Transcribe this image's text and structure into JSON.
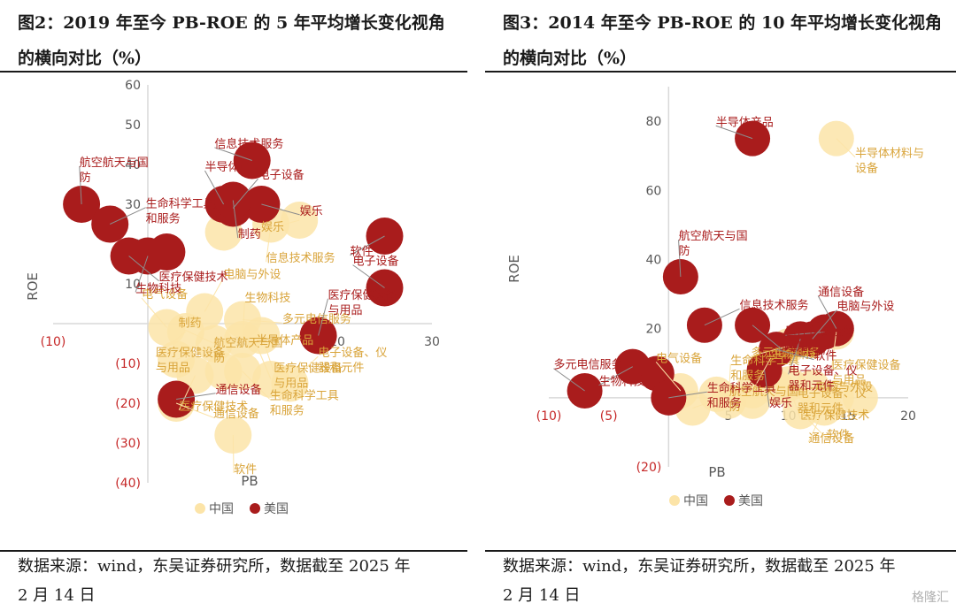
{
  "watermark": "格隆汇",
  "chart_data": [
    {
      "type": "scatter",
      "title": "图2：2019 年至今 PB-ROE 的 5 年平均增长变化视角的横向对比（%）",
      "title_lines": [
        "图2：2019 年至今 PB-ROE 的 5 年平均增长变化视角",
        "的横向对比（%）"
      ],
      "source_lines": [
        "数据来源：wind，东吴证券研究所，数据截至 2025 年",
        "2 月 14 日"
      ],
      "xlabel": "PB",
      "ylabel": "ROE",
      "xlim": [
        -10,
        30
      ],
      "ylim": [
        -40,
        60
      ],
      "x_ticks": [
        "(10)",
        "10",
        "20",
        "30"
      ],
      "x_tick_values": [
        -10,
        10,
        20,
        30
      ],
      "y_ticks": [
        "60",
        "50",
        "40",
        "30",
        "20",
        "10",
        "(10)",
        "(20)",
        "(30)",
        "(40)"
      ],
      "y_tick_values": [
        60,
        50,
        40,
        30,
        20,
        10,
        -10,
        -20,
        -30,
        -40
      ],
      "legend": [
        "中国",
        "美国"
      ],
      "legend_position": "bottom",
      "series": [
        {
          "name": "中国",
          "color": "#FCE4A8",
          "label_color": "#D9A43A",
          "points": [
            {
              "label": "",
              "x": 8,
              "y": 23
            },
            {
              "label": "信息技术服务",
              "x": 13,
              "y": 25
            },
            {
              "label": "娱乐",
              "x": 16,
              "y": 26
            },
            {
              "label": "电气设备",
              "x": 2,
              "y": -1
            },
            {
              "label": "电脑与外设",
              "x": 6,
              "y": 3
            },
            {
              "label": "多元电信服务",
              "x": 10,
              "y": 1
            },
            {
              "label": "医疗保健设备与用品",
              "x": 12,
              "y": -3
            },
            {
              "label": "医疗保健设备与用品",
              "x": 4,
              "y": -2
            },
            {
              "label": "制药",
              "x": 7,
              "y": -5
            },
            {
              "label": "生物科技",
              "x": 10,
              "y": -4
            },
            {
              "label": "航空航天与国防",
              "x": 3,
              "y": -9
            },
            {
              "label": "生命科学工具和服务",
              "x": 10,
              "y": -12
            },
            {
              "label": "医疗保健技术",
              "x": 5,
              "y": -13
            },
            {
              "label": "",
              "x": 8,
              "y": -12
            },
            {
              "label": "半导体产品",
              "x": 13,
              "y": -14
            },
            {
              "label": "电子设备、仪器和元件",
              "x": 15,
              "y": -15
            },
            {
              "label": "通信设备",
              "x": 3,
              "y": -20
            },
            {
              "label": "软件",
              "x": 9,
              "y": -28
            }
          ]
        },
        {
          "name": "美国",
          "color": "#A91C1C",
          "label_color": "#A91C1C",
          "points": [
            {
              "label": "信息技术服务",
              "x": 11,
              "y": 41
            },
            {
              "label": "航空航天与国防",
              "x": -7,
              "y": 30
            },
            {
              "label": "生命科学工具和服务",
              "x": -4,
              "y": 25
            },
            {
              "label": "医疗保健技术",
              "x": -2,
              "y": 17
            },
            {
              "label": "生物科技",
              "x": 0,
              "y": 17
            },
            {
              "label": "",
              "x": 2,
              "y": 18
            },
            {
              "label": "半导体产品",
              "x": 8,
              "y": 30
            },
            {
              "label": "电子设备",
              "x": 9,
              "y": 29
            },
            {
              "label": "娱乐",
              "x": 12,
              "y": 30
            },
            {
              "label": "制药",
              "x": 9,
              "y": 31
            },
            {
              "label": "软件",
              "x": 25,
              "y": 22
            },
            {
              "label": "电子设备",
              "x": 25,
              "y": 9
            },
            {
              "label": "医疗保健设备与用品",
              "x": 18,
              "y": -3
            },
            {
              "label": "通信设备",
              "x": 3,
              "y": -19
            }
          ]
        }
      ]
    },
    {
      "type": "scatter",
      "title": "图3：2014 年至今 PB-ROE 的 10 年平均增长变化视角的横向对比（%）",
      "title_lines": [
        "图3：2014 年至今 PB-ROE 的 10 年平均增长变化视角",
        "的横向对比（%）"
      ],
      "source_lines": [
        "数据来源：wind，东吴证券研究所，数据截至 2025 年",
        "2 月 14 日"
      ],
      "xlabel": "PB",
      "ylabel": "ROE",
      "xlim": [
        -10,
        20
      ],
      "ylim": [
        -20,
        90
      ],
      "x_ticks": [
        "(10)",
        "(5)",
        "5",
        "10",
        "15",
        "20"
      ],
      "x_tick_values": [
        -10,
        -5,
        5,
        10,
        15,
        20
      ],
      "y_ticks": [
        "80",
        "60",
        "40",
        "20",
        "(20)"
      ],
      "y_tick_values": [
        80,
        60,
        40,
        20,
        -20
      ],
      "legend": [
        "中国",
        "美国"
      ],
      "legend_position": "bottom",
      "series": [
        {
          "name": "中国",
          "color": "#FCE4A8",
          "label_color": "#D9A43A",
          "points": [
            {
              "label": "半导体材料与设备",
              "x": 14,
              "y": 75
            },
            {
              "label": "医疗保健设备与用品",
              "x": 14,
              "y": 19
            },
            {
              "label": "多元电信服务",
              "x": 10,
              "y": 15
            },
            {
              "label": "电气设备",
              "x": 1,
              "y": 2
            },
            {
              "label": "生物科技",
              "x": 7,
              "y": 2
            },
            {
              "label": "电脑与外设",
              "x": 9,
              "y": 3
            },
            {
              "label": "医疗保健技术",
              "x": 10,
              "y": 4
            },
            {
              "label": "",
              "x": 12,
              "y": 3
            },
            {
              "label": "",
              "x": 16,
              "y": 0
            },
            {
              "label": "生命科学工具和服务",
              "x": 5,
              "y": -1
            },
            {
              "label": "航空航天与国防",
              "x": 2,
              "y": -3
            },
            {
              "label": "软件",
              "x": 11,
              "y": -4
            },
            {
              "label": "通信设备",
              "x": 13,
              "y": -3
            },
            {
              "label": "电子设备、仪器和元件",
              "x": 14,
              "y": 0
            },
            {
              "label": "",
              "x": 4,
              "y": 1
            },
            {
              "label": "",
              "x": 7,
              "y": -1
            }
          ]
        },
        {
          "name": "美国",
          "color": "#A91C1C",
          "label_color": "#A91C1C",
          "points": [
            {
              "label": "半导体产品",
              "x": 7,
              "y": 75
            },
            {
              "label": "航空航天与国防",
              "x": 1,
              "y": 35
            },
            {
              "label": "信息技术服务",
              "x": 3,
              "y": 21
            },
            {
              "label": "制药",
              "x": 7,
              "y": 21
            },
            {
              "label": "电子设备、仪器和元件",
              "x": 11,
              "y": 17
            },
            {
              "label": "医疗保健设备与用品",
              "x": 13,
              "y": 19
            },
            {
              "label": "通信设备",
              "x": 14,
              "y": 20
            },
            {
              "label": "电脑与外设",
              "x": 12,
              "y": 17
            },
            {
              "label": "软件",
              "x": 9,
              "y": 14
            },
            {
              "label": "娱乐",
              "x": 8,
              "y": 8
            },
            {
              "label": "生物科技",
              "x": -3,
              "y": 9
            },
            {
              "label": "多元电信服务",
              "x": -7,
              "y": 2
            },
            {
              "label": "",
              "x": -1,
              "y": 7
            },
            {
              "label": "生命科学工具和服务",
              "x": 0,
              "y": 0
            }
          ]
        }
      ]
    }
  ]
}
